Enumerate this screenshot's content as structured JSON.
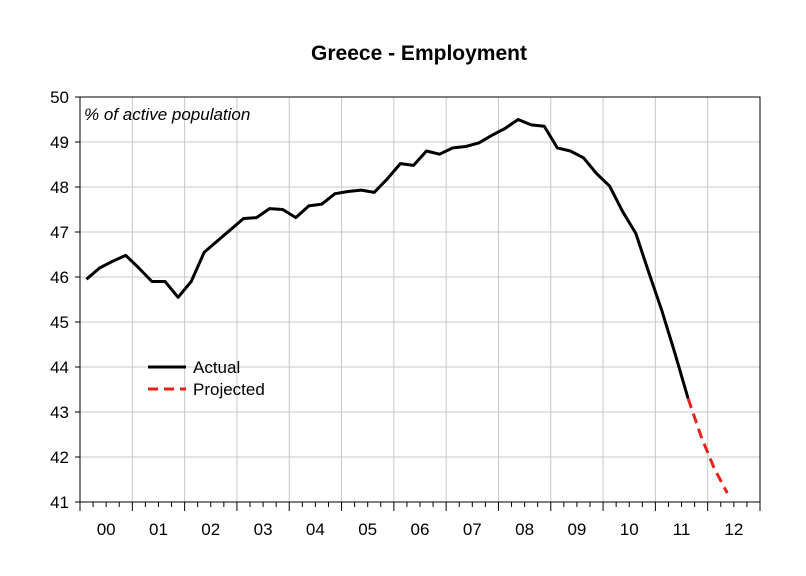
{
  "chart_data": {
    "type": "line",
    "title": "Greece - Employment",
    "unit_label": "% of active population",
    "xlabel": "",
    "ylabel": "",
    "ylim": [
      41,
      50
    ],
    "yticks": [
      41,
      42,
      43,
      44,
      45,
      46,
      47,
      48,
      49,
      50
    ],
    "xlim": [
      2000.0,
      2013.0
    ],
    "x_tick_labels": [
      "00",
      "01",
      "02",
      "03",
      "04",
      "05",
      "06",
      "07",
      "08",
      "09",
      "10",
      "11",
      "12"
    ],
    "grid": true,
    "legend_position": "left-middle",
    "series": [
      {
        "name": "Actual",
        "color": "#000000",
        "style": "solid",
        "points": [
          [
            2000.125,
            45.95
          ],
          [
            2000.375,
            46.2
          ],
          [
            2000.625,
            46.35
          ],
          [
            2000.875,
            46.48
          ],
          [
            2001.125,
            46.2
          ],
          [
            2001.375,
            45.9
          ],
          [
            2001.625,
            45.9
          ],
          [
            2001.875,
            45.55
          ],
          [
            2002.125,
            45.9
          ],
          [
            2002.375,
            46.55
          ],
          [
            2002.625,
            46.8
          ],
          [
            2002.875,
            47.05
          ],
          [
            2003.125,
            47.3
          ],
          [
            2003.375,
            47.32
          ],
          [
            2003.625,
            47.52
          ],
          [
            2003.875,
            47.5
          ],
          [
            2004.125,
            47.32
          ],
          [
            2004.375,
            47.58
          ],
          [
            2004.625,
            47.62
          ],
          [
            2004.875,
            47.85
          ],
          [
            2005.125,
            47.9
          ],
          [
            2005.375,
            47.93
          ],
          [
            2005.625,
            47.88
          ],
          [
            2005.875,
            48.18
          ],
          [
            2006.125,
            48.52
          ],
          [
            2006.375,
            48.48
          ],
          [
            2006.625,
            48.8
          ],
          [
            2006.875,
            48.73
          ],
          [
            2007.125,
            48.87
          ],
          [
            2007.375,
            48.9
          ],
          [
            2007.625,
            48.98
          ],
          [
            2007.875,
            49.15
          ],
          [
            2008.125,
            49.3
          ],
          [
            2008.375,
            49.5
          ],
          [
            2008.625,
            49.38
          ],
          [
            2008.875,
            49.35
          ],
          [
            2009.125,
            48.87
          ],
          [
            2009.375,
            48.8
          ],
          [
            2009.625,
            48.65
          ],
          [
            2009.875,
            48.3
          ],
          [
            2010.125,
            48.02
          ],
          [
            2010.375,
            47.45
          ],
          [
            2010.625,
            46.97
          ],
          [
            2010.875,
            46.1
          ],
          [
            2011.125,
            45.25
          ],
          [
            2011.375,
            44.3
          ],
          [
            2011.625,
            43.3
          ]
        ]
      },
      {
        "name": "Projected",
        "color": "#e8221a",
        "style": "dashed",
        "points": [
          [
            2011.625,
            43.3
          ],
          [
            2011.875,
            42.45
          ],
          [
            2012.125,
            41.75
          ],
          [
            2012.375,
            41.2
          ]
        ]
      }
    ]
  }
}
